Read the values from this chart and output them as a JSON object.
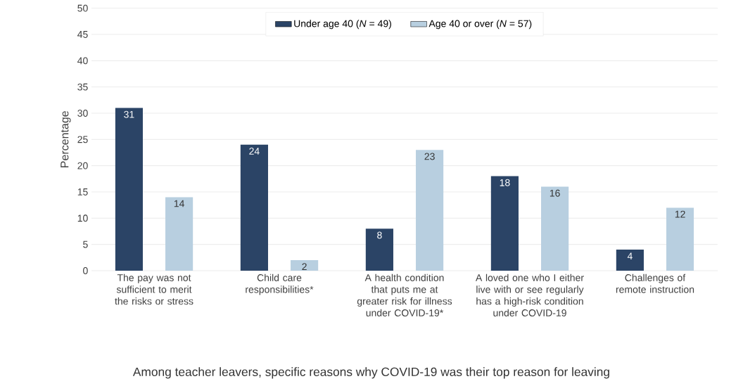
{
  "chart_data": {
    "type": "bar",
    "title": "Among teacher leavers, specific reasons why COVID-19 was their top reason for leaving",
    "ylabel": "Percentage",
    "categories": [
      "The pay was not sufficient to merit the risks or stress",
      "Child care responsibilities*",
      "A health condition that puts me at greater risk for illness under COVID-19*",
      "A loved one who I either live with or see regularly has a high-risk condition under COVID-19",
      "Challenges of remote instruction"
    ],
    "series": [
      {
        "name": "Under age 40 (*N* = 49)",
        "color": "#2b4466",
        "values": [
          31,
          24,
          8,
          18,
          4
        ]
      },
      {
        "name": "Age 40 or over (*N* = 57)",
        "color": "#b8cfe0",
        "values": [
          14,
          2,
          23,
          16,
          12
        ]
      }
    ],
    "ylim": [
      0,
      50
    ],
    "yticks": [
      0,
      5,
      10,
      15,
      20,
      25,
      30,
      35,
      40,
      45,
      50
    ],
    "grid": "y",
    "legend": "top",
    "data_labels": true
  }
}
